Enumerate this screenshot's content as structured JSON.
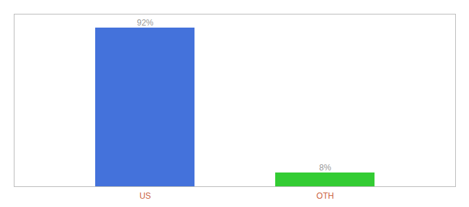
{
  "chart_data": {
    "type": "bar",
    "categories": [
      "US",
      "OTH"
    ],
    "values": [
      92,
      8
    ],
    "value_labels": [
      "92%",
      "8%"
    ],
    "colors": [
      "#4472db",
      "#33cc33"
    ],
    "ylim": [
      0,
      100
    ],
    "data_labels": true,
    "tick_labels": "x",
    "grid": false
  }
}
